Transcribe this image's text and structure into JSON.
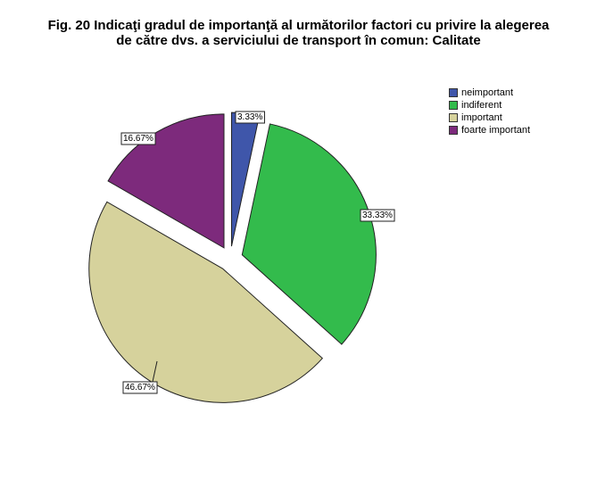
{
  "title": {
    "line1": "Fig. 20  Indicaţi gradul de importanţă al următorilor factori cu privire la alegerea",
    "line2": "de către dvs. a serviciului de transport în comun: Calitate"
  },
  "chart_data": {
    "type": "pie",
    "exploded": true,
    "legend_position": "top-right",
    "slices": [
      {
        "label": "neimportant",
        "value": 3.33,
        "display": "3.33%",
        "color": "#3f56aa"
      },
      {
        "label": "indiferent",
        "value": 33.33,
        "display": "33.33%",
        "color": "#33bb4c"
      },
      {
        "label": "important",
        "value": 46.67,
        "display": "46.67%",
        "color": "#d6d29c"
      },
      {
        "label": "foarte important",
        "value": 16.67,
        "display": "16.67%",
        "color": "#7d2a7c"
      }
    ]
  }
}
